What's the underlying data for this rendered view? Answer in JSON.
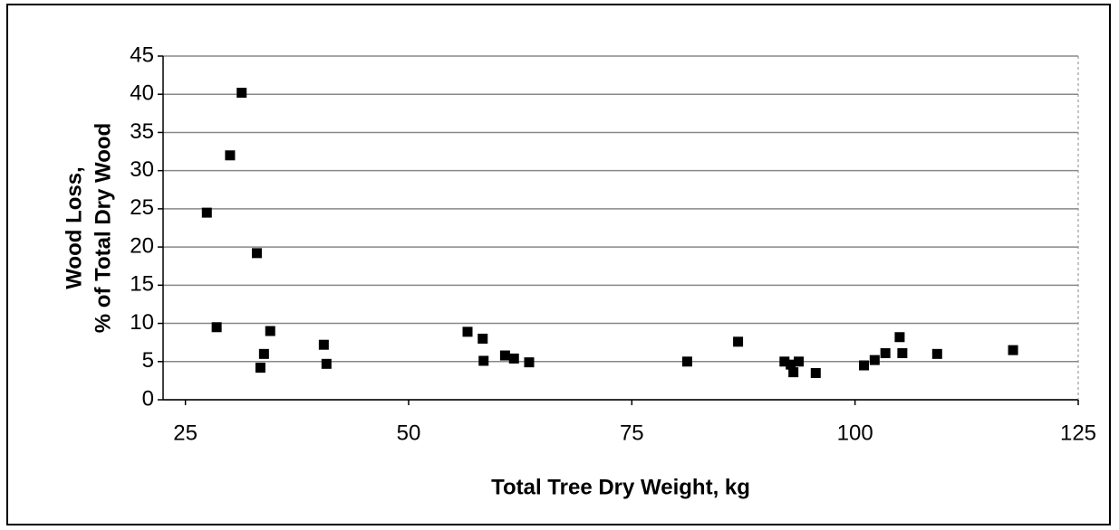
{
  "chart_data": {
    "type": "scatter",
    "x_label": "Total Tree Dry Weight, kg",
    "y_label": [
      "Wood Loss,",
      "% of Total Dry Wood"
    ],
    "color": "#000000",
    "grid": true,
    "xlim": [
      22.5,
      125
    ],
    "xticks": [
      25,
      50,
      75,
      100,
      125
    ],
    "ylim": [
      0,
      45
    ],
    "yticks": [
      0,
      5,
      10,
      15,
      20,
      25,
      30,
      35,
      40,
      45
    ],
    "x": [
      27.4,
      28.5,
      30,
      31.3,
      33,
      33.4,
      33.8,
      34.5,
      40.5,
      40.8,
      56.6,
      58.3,
      58.4,
      60.8,
      61.8,
      63.5,
      81.2,
      86.9,
      92.1,
      92.8,
      93.1,
      93.7,
      95.6,
      101,
      102.2,
      103.4,
      105,
      105.3,
      109.2,
      117.7
    ],
    "values": [
      24.5,
      9.5,
      32,
      40.2,
      19.2,
      4.2,
      6,
      9,
      7.2,
      4.7,
      8.9,
      8,
      5.1,
      5.8,
      5.4,
      4.9,
      5,
      7.6,
      5,
      4.6,
      3.6,
      5,
      3.5,
      4.5,
      5.2,
      6.1,
      8.2,
      6.1,
      6,
      6.5
    ]
  }
}
